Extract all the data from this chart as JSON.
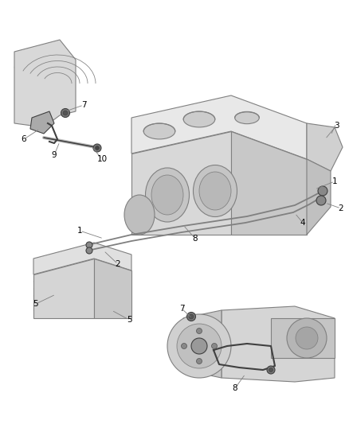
{
  "bg_color": "#ffffff",
  "line_color": "#808080",
  "dark_line": "#404040",
  "label_color": "#000000",
  "figsize": [
    4.38,
    5.33
  ],
  "dpi": 100
}
